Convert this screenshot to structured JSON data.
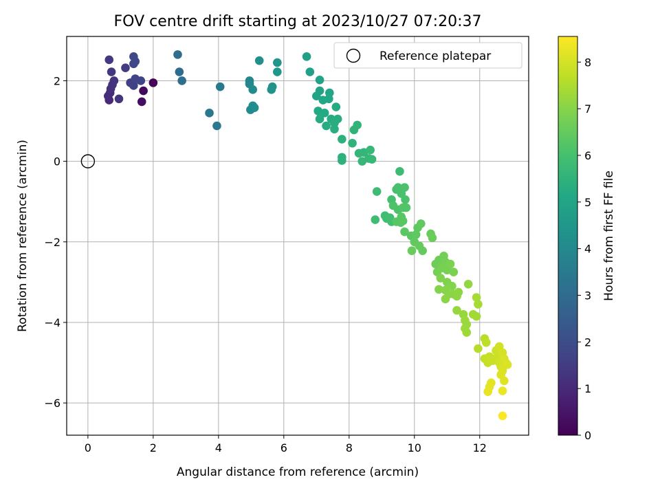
{
  "chart_data": {
    "type": "scatter",
    "title": "FOV centre drift starting at 2023/10/27 07:20:37",
    "xlabel": "Angular distance from reference (arcmin)",
    "ylabel": "Rotation from reference (arcmin)",
    "xlim": [
      -0.65,
      13.5
    ],
    "ylim": [
      -6.8,
      3.1
    ],
    "x_ticks": [
      0,
      2,
      4,
      6,
      8,
      10,
      12
    ],
    "y_ticks": [
      2,
      0,
      -2,
      -4,
      -6
    ],
    "x_tick_labels": [
      "0",
      "2",
      "4",
      "6",
      "8",
      "10",
      "12"
    ],
    "y_tick_labels": [
      "2",
      "0",
      "−2",
      "−4",
      "−6"
    ],
    "grid": true,
    "colormap": "viridis",
    "colorbar": {
      "label": "Hours from first FF file",
      "min": 0,
      "max": 8.55,
      "ticks": [
        0,
        1,
        2,
        3,
        4,
        5,
        6,
        7,
        8
      ],
      "tick_labels": [
        "0",
        "1",
        "2",
        "3",
        "4",
        "5",
        "6",
        "7",
        "8"
      ]
    },
    "legend": {
      "position": "top-right",
      "entries": [
        "Reference platepar"
      ]
    },
    "reference_point": {
      "name": "Reference platepar",
      "x": 0,
      "y": 0
    },
    "points": [
      {
        "x": 2.0,
        "y": 1.95,
        "c": 0.1
      },
      {
        "x": 1.7,
        "y": 1.75,
        "c": 0.2
      },
      {
        "x": 1.65,
        "y": 1.48,
        "c": 0.3
      },
      {
        "x": 0.65,
        "y": 1.52,
        "c": 1.0
      },
      {
        "x": 0.68,
        "y": 1.7,
        "c": 1.05
      },
      {
        "x": 0.62,
        "y": 1.62,
        "c": 1.1
      },
      {
        "x": 0.7,
        "y": 1.8,
        "c": 1.15
      },
      {
        "x": 0.75,
        "y": 1.9,
        "c": 1.2
      },
      {
        "x": 0.8,
        "y": 2.0,
        "c": 1.25
      },
      {
        "x": 0.95,
        "y": 1.55,
        "c": 1.3
      },
      {
        "x": 0.72,
        "y": 2.22,
        "c": 1.35
      },
      {
        "x": 0.65,
        "y": 2.52,
        "c": 1.4
      },
      {
        "x": 1.15,
        "y": 2.32,
        "c": 1.5
      },
      {
        "x": 1.3,
        "y": 1.95,
        "c": 1.6
      },
      {
        "x": 1.4,
        "y": 1.88,
        "c": 1.65
      },
      {
        "x": 1.45,
        "y": 2.05,
        "c": 1.7
      },
      {
        "x": 1.62,
        "y": 2.0,
        "c": 1.75
      },
      {
        "x": 1.4,
        "y": 2.42,
        "c": 1.8
      },
      {
        "x": 1.45,
        "y": 2.48,
        "c": 1.85
      },
      {
        "x": 1.4,
        "y": 2.6,
        "c": 1.9
      },
      {
        "x": 2.75,
        "y": 2.65,
        "c": 3.0
      },
      {
        "x": 2.8,
        "y": 2.22,
        "c": 3.05
      },
      {
        "x": 2.88,
        "y": 2.0,
        "c": 3.1
      },
      {
        "x": 3.72,
        "y": 1.2,
        "c": 3.4
      },
      {
        "x": 3.95,
        "y": 0.88,
        "c": 3.45
      },
      {
        "x": 4.05,
        "y": 1.85,
        "c": 3.5
      },
      {
        "x": 4.95,
        "y": 2.0,
        "c": 3.9
      },
      {
        "x": 4.95,
        "y": 1.92,
        "c": 3.95
      },
      {
        "x": 5.05,
        "y": 1.78,
        "c": 4.0
      },
      {
        "x": 4.98,
        "y": 1.28,
        "c": 4.05
      },
      {
        "x": 5.05,
        "y": 1.38,
        "c": 4.1
      },
      {
        "x": 5.1,
        "y": 1.33,
        "c": 4.15
      },
      {
        "x": 5.25,
        "y": 2.5,
        "c": 4.2
      },
      {
        "x": 5.62,
        "y": 1.78,
        "c": 4.3
      },
      {
        "x": 5.65,
        "y": 1.85,
        "c": 4.35
      },
      {
        "x": 5.8,
        "y": 2.45,
        "c": 4.4
      },
      {
        "x": 5.8,
        "y": 2.22,
        "c": 4.45
      },
      {
        "x": 6.7,
        "y": 2.6,
        "c": 4.8
      },
      {
        "x": 6.8,
        "y": 2.22,
        "c": 4.85
      },
      {
        "x": 7.1,
        "y": 2.02,
        "c": 4.9
      },
      {
        "x": 7.1,
        "y": 1.75,
        "c": 4.95
      },
      {
        "x": 7.0,
        "y": 1.62,
        "c": 5.0
      },
      {
        "x": 7.4,
        "y": 1.7,
        "c": 5.05
      },
      {
        "x": 7.38,
        "y": 1.55,
        "c": 5.1
      },
      {
        "x": 7.2,
        "y": 1.52,
        "c": 5.1
      },
      {
        "x": 7.05,
        "y": 1.25,
        "c": 5.15
      },
      {
        "x": 7.25,
        "y": 1.2,
        "c": 5.15
      },
      {
        "x": 7.6,
        "y": 1.35,
        "c": 5.2
      },
      {
        "x": 7.1,
        "y": 1.05,
        "c": 5.2
      },
      {
        "x": 7.45,
        "y": 1.05,
        "c": 5.25
      },
      {
        "x": 7.3,
        "y": 0.88,
        "c": 5.25
      },
      {
        "x": 7.55,
        "y": 0.95,
        "c": 5.3
      },
      {
        "x": 7.65,
        "y": 1.05,
        "c": 5.3
      },
      {
        "x": 7.55,
        "y": 0.8,
        "c": 5.35
      },
      {
        "x": 7.78,
        "y": 0.55,
        "c": 5.4
      },
      {
        "x": 7.78,
        "y": 0.1,
        "c": 5.45
      },
      {
        "x": 7.78,
        "y": 0.02,
        "c": 5.45
      },
      {
        "x": 8.1,
        "y": 0.45,
        "c": 5.5
      },
      {
        "x": 8.15,
        "y": 0.78,
        "c": 5.5
      },
      {
        "x": 8.25,
        "y": 0.9,
        "c": 5.55
      },
      {
        "x": 8.3,
        "y": 0.2,
        "c": 5.6
      },
      {
        "x": 8.45,
        "y": 0.22,
        "c": 5.6
      },
      {
        "x": 8.4,
        "y": 0.0,
        "c": 5.65
      },
      {
        "x": 8.6,
        "y": 0.07,
        "c": 5.65
      },
      {
        "x": 8.65,
        "y": 0.28,
        "c": 5.7
      },
      {
        "x": 8.7,
        "y": 0.05,
        "c": 5.7
      },
      {
        "x": 9.55,
        "y": -0.25,
        "c": 5.8
      },
      {
        "x": 8.85,
        "y": -0.75,
        "c": 5.85
      },
      {
        "x": 8.8,
        "y": -1.45,
        "c": 5.85
      },
      {
        "x": 9.1,
        "y": -1.35,
        "c": 5.9
      },
      {
        "x": 9.15,
        "y": -1.42,
        "c": 5.9
      },
      {
        "x": 9.25,
        "y": -1.4,
        "c": 5.95
      },
      {
        "x": 9.3,
        "y": -1.5,
        "c": 5.95
      },
      {
        "x": 9.3,
        "y": -0.95,
        "c": 6.0
      },
      {
        "x": 9.45,
        "y": -0.7,
        "c": 6.0
      },
      {
        "x": 9.5,
        "y": -0.65,
        "c": 6.05
      },
      {
        "x": 9.6,
        "y": -0.8,
        "c": 6.05
      },
      {
        "x": 9.7,
        "y": -0.65,
        "c": 6.1
      },
      {
        "x": 9.72,
        "y": -0.95,
        "c": 6.1
      },
      {
        "x": 9.35,
        "y": -1.1,
        "c": 6.15
      },
      {
        "x": 9.5,
        "y": -1.2,
        "c": 6.15
      },
      {
        "x": 9.65,
        "y": -1.15,
        "c": 6.2
      },
      {
        "x": 9.75,
        "y": -1.15,
        "c": 6.2
      },
      {
        "x": 9.45,
        "y": -1.5,
        "c": 6.25
      },
      {
        "x": 9.58,
        "y": -1.52,
        "c": 6.25
      },
      {
        "x": 9.65,
        "y": -1.48,
        "c": 6.3
      },
      {
        "x": 9.6,
        "y": -1.38,
        "c": 6.3
      },
      {
        "x": 9.7,
        "y": -1.75,
        "c": 6.35
      },
      {
        "x": 9.9,
        "y": -1.85,
        "c": 6.35
      },
      {
        "x": 10.05,
        "y": -1.82,
        "c": 6.4
      },
      {
        "x": 10.1,
        "y": -1.65,
        "c": 6.4
      },
      {
        "x": 10.2,
        "y": -1.55,
        "c": 6.45
      },
      {
        "x": 10.0,
        "y": -2.0,
        "c": 6.45
      },
      {
        "x": 10.15,
        "y": -2.1,
        "c": 6.5
      },
      {
        "x": 10.25,
        "y": -2.22,
        "c": 6.5
      },
      {
        "x": 9.92,
        "y": -2.22,
        "c": 6.55
      },
      {
        "x": 10.5,
        "y": -1.8,
        "c": 6.55
      },
      {
        "x": 10.55,
        "y": -1.9,
        "c": 6.6
      },
      {
        "x": 10.65,
        "y": -2.55,
        "c": 6.65
      },
      {
        "x": 10.75,
        "y": -2.45,
        "c": 6.65
      },
      {
        "x": 10.8,
        "y": -2.6,
        "c": 6.7
      },
      {
        "x": 10.9,
        "y": -2.35,
        "c": 6.7
      },
      {
        "x": 10.95,
        "y": -2.5,
        "c": 6.75
      },
      {
        "x": 10.7,
        "y": -2.75,
        "c": 6.75
      },
      {
        "x": 10.85,
        "y": -2.65,
        "c": 6.8
      },
      {
        "x": 11.0,
        "y": -2.7,
        "c": 6.8
      },
      {
        "x": 11.1,
        "y": -2.55,
        "c": 6.85
      },
      {
        "x": 11.2,
        "y": -2.75,
        "c": 6.85
      },
      {
        "x": 10.8,
        "y": -2.9,
        "c": 6.9
      },
      {
        "x": 11.0,
        "y": -3.0,
        "c": 6.9
      },
      {
        "x": 11.15,
        "y": -3.1,
        "c": 6.95
      },
      {
        "x": 10.75,
        "y": -3.18,
        "c": 6.95
      },
      {
        "x": 10.95,
        "y": -3.2,
        "c": 7.0
      },
      {
        "x": 11.05,
        "y": -3.3,
        "c": 7.0
      },
      {
        "x": 10.95,
        "y": -3.42,
        "c": 7.05
      },
      {
        "x": 11.2,
        "y": -3.3,
        "c": 7.05
      },
      {
        "x": 11.3,
        "y": -3.35,
        "c": 7.1
      },
      {
        "x": 11.35,
        "y": -3.25,
        "c": 7.1
      },
      {
        "x": 11.65,
        "y": -3.05,
        "c": 7.15
      },
      {
        "x": 11.3,
        "y": -3.7,
        "c": 7.2
      },
      {
        "x": 11.5,
        "y": -3.8,
        "c": 7.2
      },
      {
        "x": 11.55,
        "y": -3.95,
        "c": 7.25
      },
      {
        "x": 11.6,
        "y": -4.05,
        "c": 7.25
      },
      {
        "x": 11.55,
        "y": -4.15,
        "c": 7.3
      },
      {
        "x": 11.6,
        "y": -4.25,
        "c": 7.3
      },
      {
        "x": 11.8,
        "y": -3.8,
        "c": 7.35
      },
      {
        "x": 11.9,
        "y": -3.85,
        "c": 7.35
      },
      {
        "x": 11.9,
        "y": -3.38,
        "c": 7.4
      },
      {
        "x": 11.95,
        "y": -3.55,
        "c": 7.4
      },
      {
        "x": 11.95,
        "y": -4.65,
        "c": 7.6
      },
      {
        "x": 12.15,
        "y": -4.4,
        "c": 7.65
      },
      {
        "x": 12.2,
        "y": -4.5,
        "c": 7.7
      },
      {
        "x": 12.15,
        "y": -4.9,
        "c": 7.75
      },
      {
        "x": 12.25,
        "y": -5.0,
        "c": 7.8
      },
      {
        "x": 12.3,
        "y": -4.85,
        "c": 7.8
      },
      {
        "x": 12.4,
        "y": -4.95,
        "c": 7.85
      },
      {
        "x": 12.5,
        "y": -4.7,
        "c": 7.9
      },
      {
        "x": 12.55,
        "y": -4.85,
        "c": 7.9
      },
      {
        "x": 12.6,
        "y": -4.6,
        "c": 7.95
      },
      {
        "x": 12.6,
        "y": -5.0,
        "c": 7.95
      },
      {
        "x": 12.65,
        "y": -5.1,
        "c": 8.0
      },
      {
        "x": 12.7,
        "y": -4.75,
        "c": 8.0
      },
      {
        "x": 12.75,
        "y": -4.9,
        "c": 8.05
      },
      {
        "x": 12.8,
        "y": -5.0,
        "c": 8.05
      },
      {
        "x": 12.85,
        "y": -5.05,
        "c": 8.1
      },
      {
        "x": 12.7,
        "y": -5.2,
        "c": 8.1
      },
      {
        "x": 12.65,
        "y": -5.3,
        "c": 8.15
      },
      {
        "x": 12.75,
        "y": -5.45,
        "c": 8.15
      },
      {
        "x": 12.35,
        "y": -5.5,
        "c": 8.2
      },
      {
        "x": 12.3,
        "y": -5.6,
        "c": 8.2
      },
      {
        "x": 12.25,
        "y": -5.72,
        "c": 8.25
      },
      {
        "x": 12.7,
        "y": -5.7,
        "c": 8.3
      },
      {
        "x": 12.7,
        "y": -6.32,
        "c": 8.5
      }
    ]
  }
}
